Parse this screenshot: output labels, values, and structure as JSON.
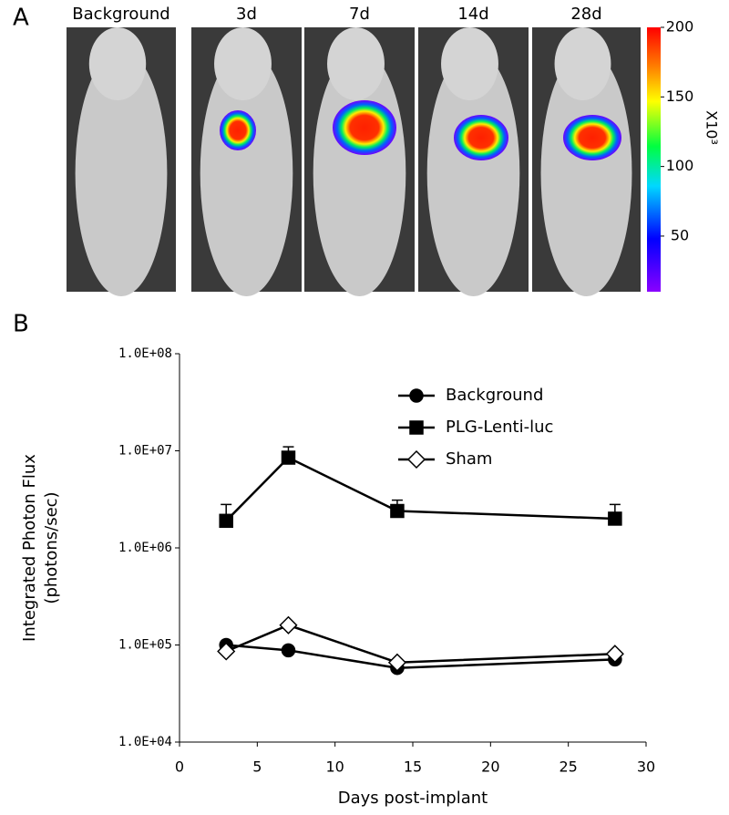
{
  "panel_a": {
    "label": "A",
    "images": [
      "Background",
      "3d",
      "7d",
      "14d",
      "28d"
    ],
    "colorbar": {
      "lim": [
        10,
        200
      ],
      "ticks": [
        50,
        100,
        150,
        200
      ],
      "label": "X10³"
    }
  },
  "chart_data": {
    "type": "line",
    "panel_label": "B",
    "xlabel": "Days post-implant",
    "ylabel": [
      "Integrated Photon Flux",
      "(photons/sec)"
    ],
    "log_y": true,
    "x": [
      3,
      7,
      14,
      28
    ],
    "xlim": [
      0,
      30
    ],
    "xticks": [
      0,
      5,
      10,
      15,
      20,
      25,
      30
    ],
    "ylim": [
      10000,
      100000000
    ],
    "yticks": [
      {
        "value": 10000,
        "label": "1.0E+04"
      },
      {
        "value": 100000,
        "label": "1.0E+05"
      },
      {
        "value": 1000000,
        "label": "1.0E+06"
      },
      {
        "value": 10000000,
        "label": "1.0E+07"
      },
      {
        "value": 100000000,
        "label": "1.0E+08"
      }
    ],
    "legend": "upper right",
    "series": [
      {
        "name": "Background",
        "color": "#000000",
        "marker": "circle",
        "values": [
          100000,
          88000,
          58000,
          71000
        ]
      },
      {
        "name": "PLG-Lenti-luc",
        "color": "#000000",
        "marker": "square",
        "values": [
          1900000,
          8500000,
          2400000,
          2000000
        ],
        "errors": [
          900000,
          2500000,
          700000,
          800000
        ]
      },
      {
        "name": "Sham",
        "color": "#000000",
        "marker": "diamond",
        "values": [
          86000,
          160000,
          66000,
          81000
        ]
      }
    ]
  }
}
